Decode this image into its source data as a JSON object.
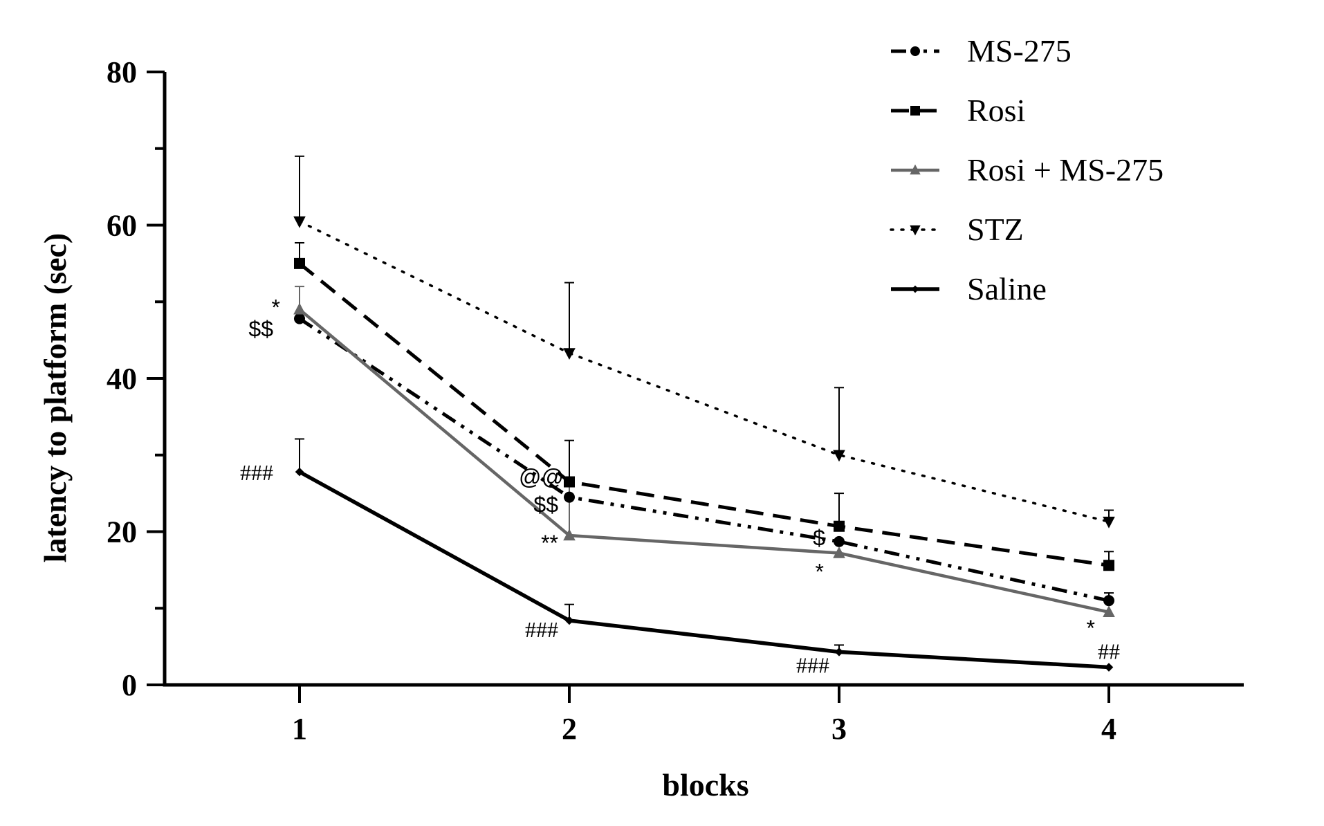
{
  "chart_data": {
    "type": "line",
    "title": "",
    "xlabel": "blocks",
    "ylabel": "latency to platform (sec)",
    "x": [
      1,
      2,
      3,
      4
    ],
    "x_tick_labels": [
      "1",
      "2",
      "3",
      "4"
    ],
    "y_ticks": [
      0,
      20,
      40,
      60,
      80
    ],
    "y_tick_labels": [
      "0",
      "20",
      "40",
      "60",
      "80"
    ],
    "ylim": [
      0,
      80
    ],
    "xlim": [
      0.5,
      4.5
    ],
    "grid": false,
    "legend_position": "top-right",
    "series": [
      {
        "name": "MS-275",
        "values": [
          47.8,
          24.5,
          18.7,
          11.0
        ],
        "error": [
          null,
          null,
          null,
          1.0
        ],
        "color": "#000000",
        "line_style": "dash-dot-dot",
        "marker": "circle"
      },
      {
        "name": "Rosi",
        "values": [
          55.0,
          26.5,
          20.7,
          15.6
        ],
        "error": [
          2.7,
          5.4,
          4.3,
          1.8
        ],
        "color": "#000000",
        "line_style": "dashed",
        "marker": "square"
      },
      {
        "name": "Rosi + MS-275",
        "values": [
          49.0,
          19.5,
          17.2,
          9.5
        ],
        "error": [
          3.0,
          6.5,
          null,
          null
        ],
        "color": "#666666",
        "line_style": "solid",
        "marker": "triangle-up"
      },
      {
        "name": "STZ",
        "values": [
          60.5,
          43.3,
          30.0,
          21.3
        ],
        "error": [
          8.5,
          9.2,
          8.8,
          1.5
        ],
        "color": "#000000",
        "line_style": "dotted",
        "marker": "triangle-down"
      },
      {
        "name": "Saline",
        "values": [
          27.8,
          8.4,
          4.3,
          2.3
        ],
        "error": [
          4.3,
          2.1,
          0.9,
          null
        ],
        "color": "#000000",
        "line_style": "solid-thick",
        "marker": "diamond"
      }
    ],
    "annotations": [
      {
        "text": "*",
        "x": 1,
        "y": 49.0,
        "position": "left-above"
      },
      {
        "text": "$$",
        "x": 1,
        "y": 47.8,
        "position": "left"
      },
      {
        "text": "###",
        "x": 1,
        "y": 27.8,
        "position": "left"
      },
      {
        "text": "@@",
        "x": 2,
        "y": 26.5,
        "position": "left"
      },
      {
        "text": "$$",
        "x": 2,
        "y": 24.5,
        "position": "left-below"
      },
      {
        "text": "**",
        "x": 2,
        "y": 19.5,
        "position": "left-below"
      },
      {
        "text": "###",
        "x": 2,
        "y": 8.4,
        "position": "left-below"
      },
      {
        "text": "$",
        "x": 3,
        "y": 20.7,
        "position": "left-below"
      },
      {
        "text": "*",
        "x": 3,
        "y": 17.2,
        "position": "left-below"
      },
      {
        "text": "###",
        "x": 3,
        "y": 4.3,
        "position": "left-below"
      },
      {
        "text": "*",
        "x": 4,
        "y": 9.5,
        "position": "left-below"
      },
      {
        "text": "##",
        "x": 4,
        "y": 2.3,
        "position": "above"
      }
    ]
  }
}
